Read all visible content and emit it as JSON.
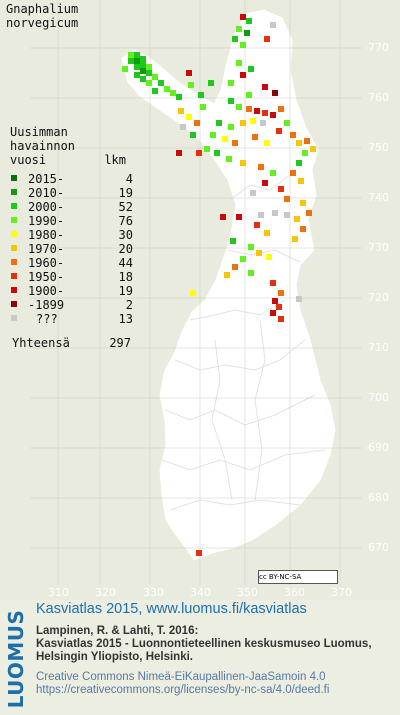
{
  "map": {
    "species": [
      "Gnaphalium",
      "norvegicum"
    ],
    "legend_title": [
      "Uusimman",
      "havainnon",
      "vuosi"
    ],
    "legend_col_header": "lkm",
    "legend": [
      {
        "label": "2015-",
        "count": "4",
        "color": "#0a6e0a"
      },
      {
        "label": "2010-",
        "count": "19",
        "color": "#109a10"
      },
      {
        "label": "2000-",
        "count": "52",
        "color": "#1ec81e"
      },
      {
        "label": "1990-",
        "count": "76",
        "color": "#66ef1e"
      },
      {
        "label": "1980-",
        "count": "30",
        "color": "#ffff00"
      },
      {
        "label": "1970-",
        "count": "20",
        "color": "#f8c40a"
      },
      {
        "label": "1960-",
        "count": "44",
        "color": "#f07010"
      },
      {
        "label": "1950-",
        "count": "18",
        "color": "#e23010"
      },
      {
        "label": "1900-",
        "count": "19",
        "color": "#c80a0a"
      },
      {
        "label": "-1899",
        "count": "2",
        "color": "#8a0505"
      },
      {
        "label": "???",
        "count": "13",
        "color": "#c8c8c8"
      }
    ],
    "total_label": "Yhteensä",
    "total_count": "297",
    "y_ticks": [
      "770",
      "760",
      "750",
      "740",
      "730",
      "720",
      "710",
      "700",
      "690",
      "680",
      "670"
    ],
    "x_ticks": [
      "310",
      "320",
      "330",
      "340",
      "350",
      "360",
      "370"
    ],
    "license_badge": "cc BY-NC-SA"
  },
  "footer": {
    "logo": "LUOMUS",
    "title": "Kasviatlas 2015, www.luomus.fi/kasviatlas",
    "citation": [
      "Lampinen, R. & Lahti, T. 2016:",
      "Kasviatlas 2015 - Luonnontieteellinen keskusmuseo Luomus,",
      "Helsingin Yliopisto, Helsinki."
    ],
    "license": [
      "Creative Commons Nimeä-EiKaupallinen-JaaSamoin 4.0",
      "https://creativecommons.org/licenses/by-nc-sa/4.0/deed.fi"
    ]
  }
}
